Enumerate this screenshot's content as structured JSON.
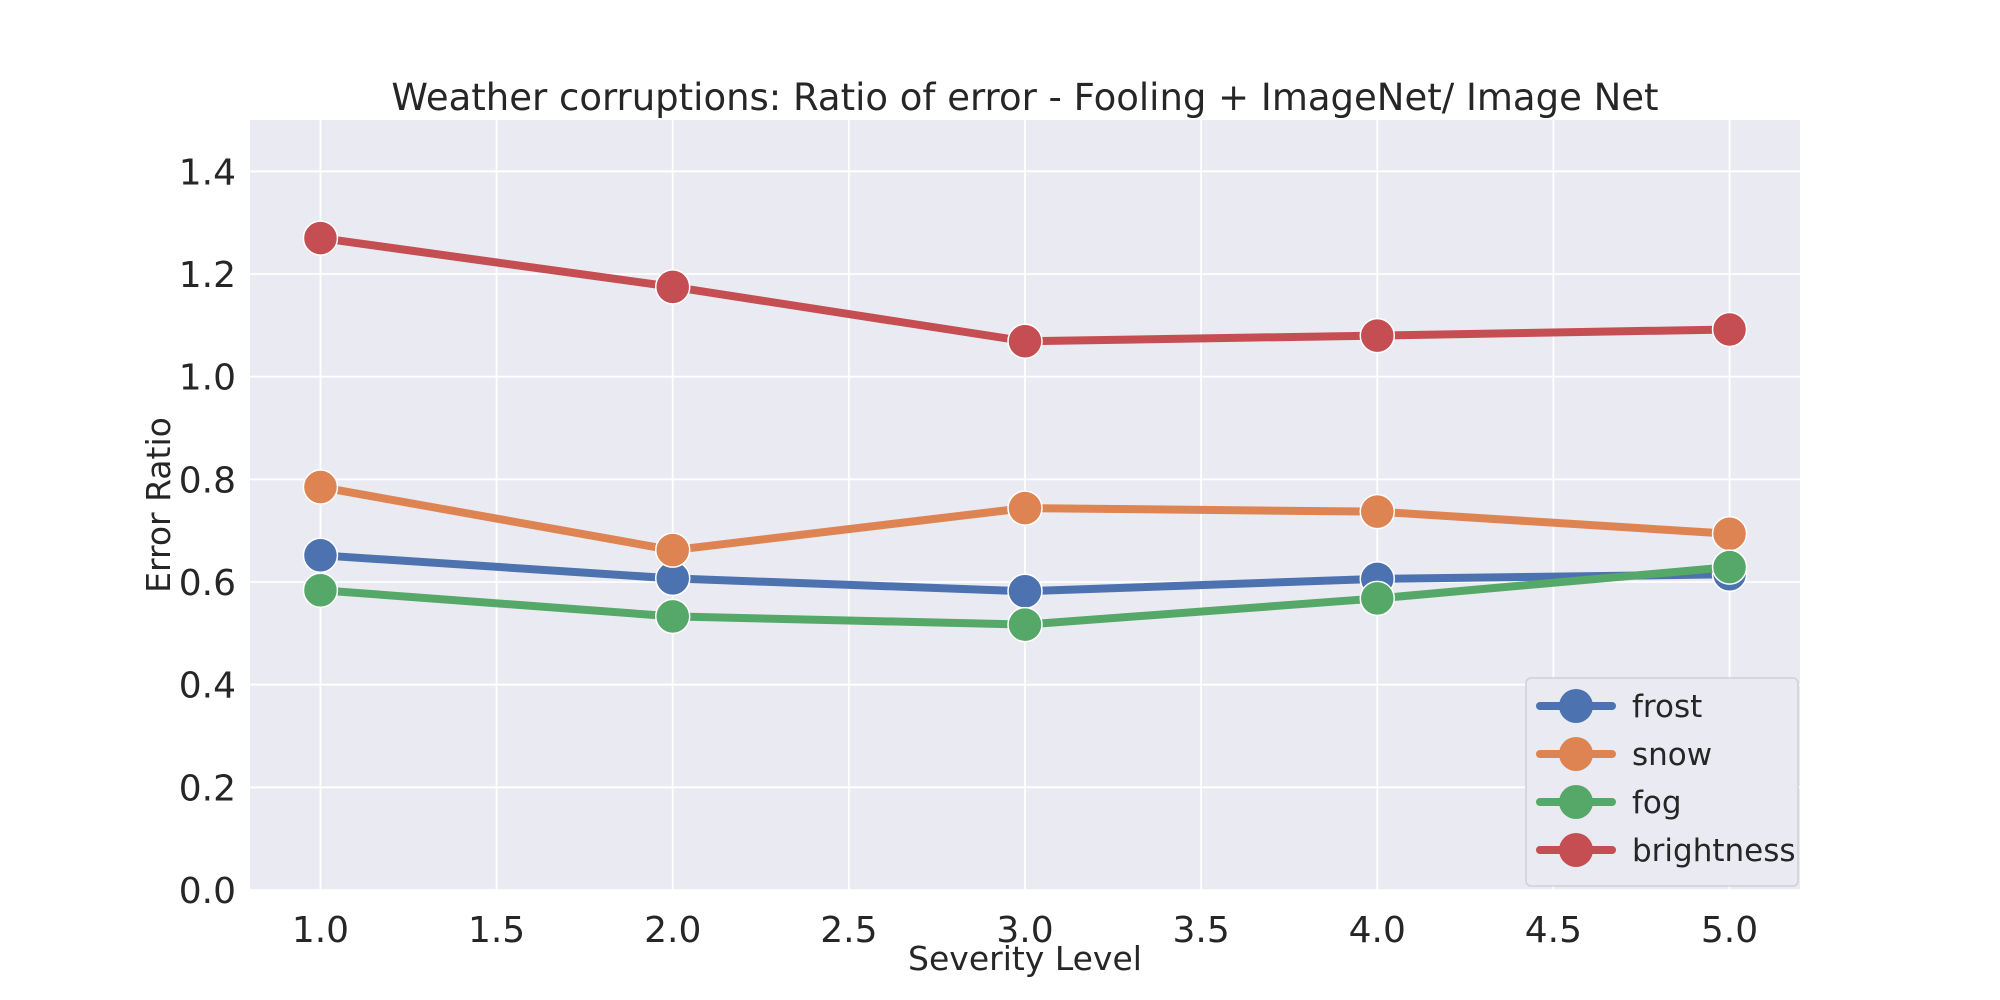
{
  "chart_data": {
    "type": "line",
    "title": "Weather corruptions: Ratio of error - Fooling + ImageNet/ Image Net",
    "xlabel": "Severity Level",
    "ylabel": "Error Ratio",
    "x": [
      1.0,
      2.0,
      3.0,
      4.0,
      5.0
    ],
    "xlim": [
      0.8,
      5.2
    ],
    "ylim": [
      0.0,
      1.5
    ],
    "xticks": [
      1.0,
      1.5,
      2.0,
      2.5,
      3.0,
      3.5,
      4.0,
      4.5,
      5.0
    ],
    "xtick_labels": [
      "1.0",
      "1.5",
      "2.0",
      "2.5",
      "3.0",
      "3.5",
      "4.0",
      "4.5",
      "5.0"
    ],
    "yticks": [
      0.0,
      0.2,
      0.4,
      0.6,
      0.8,
      1.0,
      1.2,
      1.4
    ],
    "ytick_labels": [
      "0.0",
      "0.2",
      "0.4",
      "0.6",
      "0.8",
      "1.0",
      "1.2",
      "1.4"
    ],
    "grid": true,
    "legend_position": "lower-right",
    "background_color": "#eaeaf2",
    "series": [
      {
        "name": "frost",
        "color": "#4c72b0",
        "values": [
          0.652,
          0.607,
          0.582,
          0.606,
          0.615
        ]
      },
      {
        "name": "snow",
        "color": "#dd8452",
        "values": [
          0.785,
          0.662,
          0.744,
          0.737,
          0.694
        ]
      },
      {
        "name": "fog",
        "color": "#55a868",
        "values": [
          0.584,
          0.533,
          0.517,
          0.568,
          0.629
        ]
      },
      {
        "name": "brightness",
        "color": "#c44e52",
        "values": [
          1.27,
          1.175,
          1.069,
          1.08,
          1.092
        ]
      }
    ]
  }
}
